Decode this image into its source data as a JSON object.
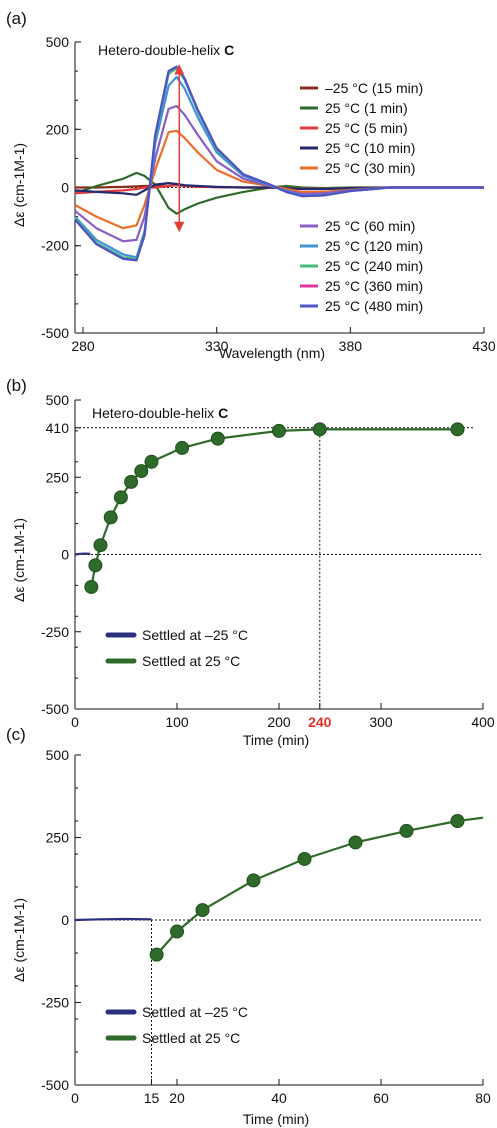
{
  "panels": {
    "a": {
      "label": "(a)"
    },
    "b": {
      "label": "(b)"
    },
    "c": {
      "label": "(c)"
    }
  },
  "colors": {
    "axis": "#111111",
    "green": "#2e6b2a",
    "navy": "#2a2f7e",
    "red_arrow": "#e0423a",
    "tick_highlight": "#e0302a"
  },
  "chart_data": [
    {
      "type": "line",
      "panel": "a",
      "annotation_prefix": "Hetero-double-helix ",
      "annotation_bold": "C",
      "xlabel": "Wavelength (nm)",
      "ylabel": "Δε (cm-1M-1)",
      "xlim": [
        277,
        430
      ],
      "ylim": [
        -500,
        500
      ],
      "xticks": [
        280,
        330,
        380,
        430
      ],
      "yticks": [
        500,
        200,
        0,
        -200,
        -500
      ],
      "grid": false,
      "legend_position": "right",
      "x": [
        277,
        285,
        295,
        300,
        303,
        307,
        312,
        315,
        318,
        323,
        330,
        340,
        350,
        356,
        362,
        370,
        380,
        395,
        430
      ],
      "series": [
        {
          "name": "–25 °C (15 min)",
          "color": "#8b2b1a",
          "values": [
            0,
            0,
            2,
            4,
            5,
            5,
            15,
            10,
            5,
            3,
            1,
            0,
            0,
            -2,
            -4,
            -5,
            -2,
            0,
            0
          ]
        },
        {
          "name": "25 °C (1 min)",
          "color": "#2e6b2a",
          "values": [
            -20,
            5,
            30,
            50,
            40,
            10,
            -70,
            -90,
            -75,
            -55,
            -35,
            -15,
            0,
            5,
            0,
            -2,
            0,
            0,
            0
          ]
        },
        {
          "name": "25 °C (5 min)",
          "color": "#e23a3a",
          "values": [
            -20,
            -15,
            -10,
            -5,
            0,
            0,
            5,
            8,
            5,
            3,
            1,
            0,
            0,
            -2,
            -4,
            -4,
            -2,
            0,
            0
          ]
        },
        {
          "name": "25 °C (10 min)",
          "color": "#232a6e",
          "values": [
            -10,
            -15,
            -20,
            -25,
            -10,
            10,
            15,
            12,
            8,
            5,
            2,
            0,
            0,
            -3,
            -5,
            -5,
            -2,
            0,
            0
          ]
        },
        {
          "name": "25 °C (30 min)",
          "color": "#ea6f28",
          "values": [
            -60,
            -100,
            -140,
            -130,
            -60,
            60,
            190,
            195,
            170,
            120,
            60,
            20,
            5,
            -5,
            -15,
            -15,
            -8,
            0,
            0
          ]
        },
        {
          "name": "25 °C (60 min)",
          "color": "#8a5cc4",
          "values": [
            -80,
            -140,
            -185,
            -180,
            -100,
            100,
            270,
            280,
            250,
            180,
            90,
            30,
            5,
            -10,
            -22,
            -20,
            -10,
            0,
            0
          ]
        },
        {
          "name": "25 °C (120 min)",
          "color": "#3f92d8",
          "values": [
            -100,
            -180,
            -230,
            -240,
            -150,
            150,
            350,
            380,
            340,
            240,
            120,
            40,
            8,
            -12,
            -28,
            -25,
            -12,
            0,
            0
          ]
        },
        {
          "name": "25 °C (240 min)",
          "color": "#3fbf7a",
          "values": [
            -105,
            -190,
            -240,
            -245,
            -160,
            170,
            390,
            410,
            370,
            260,
            130,
            45,
            10,
            -15,
            -30,
            -27,
            -12,
            0,
            0
          ]
        },
        {
          "name": "25 °C (360 min)",
          "color": "#e0379a",
          "values": [
            -110,
            -195,
            -245,
            -250,
            -165,
            180,
            400,
            415,
            375,
            265,
            135,
            45,
            10,
            -15,
            -30,
            -27,
            -12,
            0,
            0
          ]
        },
        {
          "name": "25 °C (480 min)",
          "color": "#4a56c8",
          "values": [
            -110,
            -195,
            -245,
            -250,
            -165,
            180,
            400,
            415,
            375,
            265,
            135,
            45,
            10,
            -15,
            -30,
            -27,
            -12,
            0,
            0
          ]
        }
      ],
      "arrow": {
        "x": 316,
        "from": -150,
        "to": 420
      }
    },
    {
      "type": "line",
      "panel": "b",
      "annotation_prefix": "Hetero-double-helix ",
      "annotation_bold": "C",
      "xlabel": "Time (min)",
      "ylabel": "Δε (cm-1M-1)",
      "xlim": [
        0,
        400
      ],
      "ylim": [
        -500,
        500
      ],
      "xticks": [
        0,
        100,
        200,
        300,
        400
      ],
      "xtick_highlight": 240,
      "yticks": [
        500,
        410,
        250,
        0,
        -250,
        -500
      ],
      "grid": false,
      "legend_position": "bottom-left",
      "reference_lines": {
        "y": 410,
        "x": 240
      },
      "series": [
        {
          "name": "Settled at –25 °C",
          "color": "#2a2f7e",
          "x": [
            0,
            5,
            10,
            15
          ],
          "values": [
            0,
            2,
            3,
            2
          ]
        },
        {
          "name": "Settled at 25 °C",
          "color": "#2e6b2a",
          "x": [
            16,
            20,
            25,
            35,
            45,
            55,
            65,
            75,
            105,
            140,
            200,
            240,
            375
          ],
          "values": [
            -105,
            -35,
            30,
            120,
            185,
            235,
            270,
            300,
            345,
            375,
            400,
            405,
            405
          ]
        }
      ]
    },
    {
      "type": "line",
      "panel": "c",
      "xlabel": "Time (min)",
      "ylabel": "Δε (cm-1M-1)",
      "xlim": [
        0,
        80
      ],
      "ylim": [
        -500,
        500
      ],
      "xticks": [
        0,
        15,
        20,
        40,
        60,
        80
      ],
      "yticks": [
        500,
        250,
        0,
        -250,
        -500
      ],
      "grid": false,
      "legend_position": "bottom-left",
      "reference_lines": {
        "x": 15
      },
      "series": [
        {
          "name": "Settled at –25 °C",
          "color": "#2a2f7e",
          "x": [
            0,
            5,
            10,
            15
          ],
          "values": [
            0,
            2,
            3,
            2
          ]
        },
        {
          "name": "Settled at 25 °C",
          "color": "#2e6b2a",
          "x": [
            16,
            20,
            25,
            35,
            45,
            55,
            65,
            75
          ],
          "values": [
            -105,
            -35,
            30,
            120,
            185,
            235,
            270,
            300
          ]
        },
        {
          "name": "",
          "color": "#2e6b2a",
          "x": [
            75,
            80
          ],
          "values": [
            300,
            310
          ],
          "markers": false
        }
      ]
    }
  ]
}
